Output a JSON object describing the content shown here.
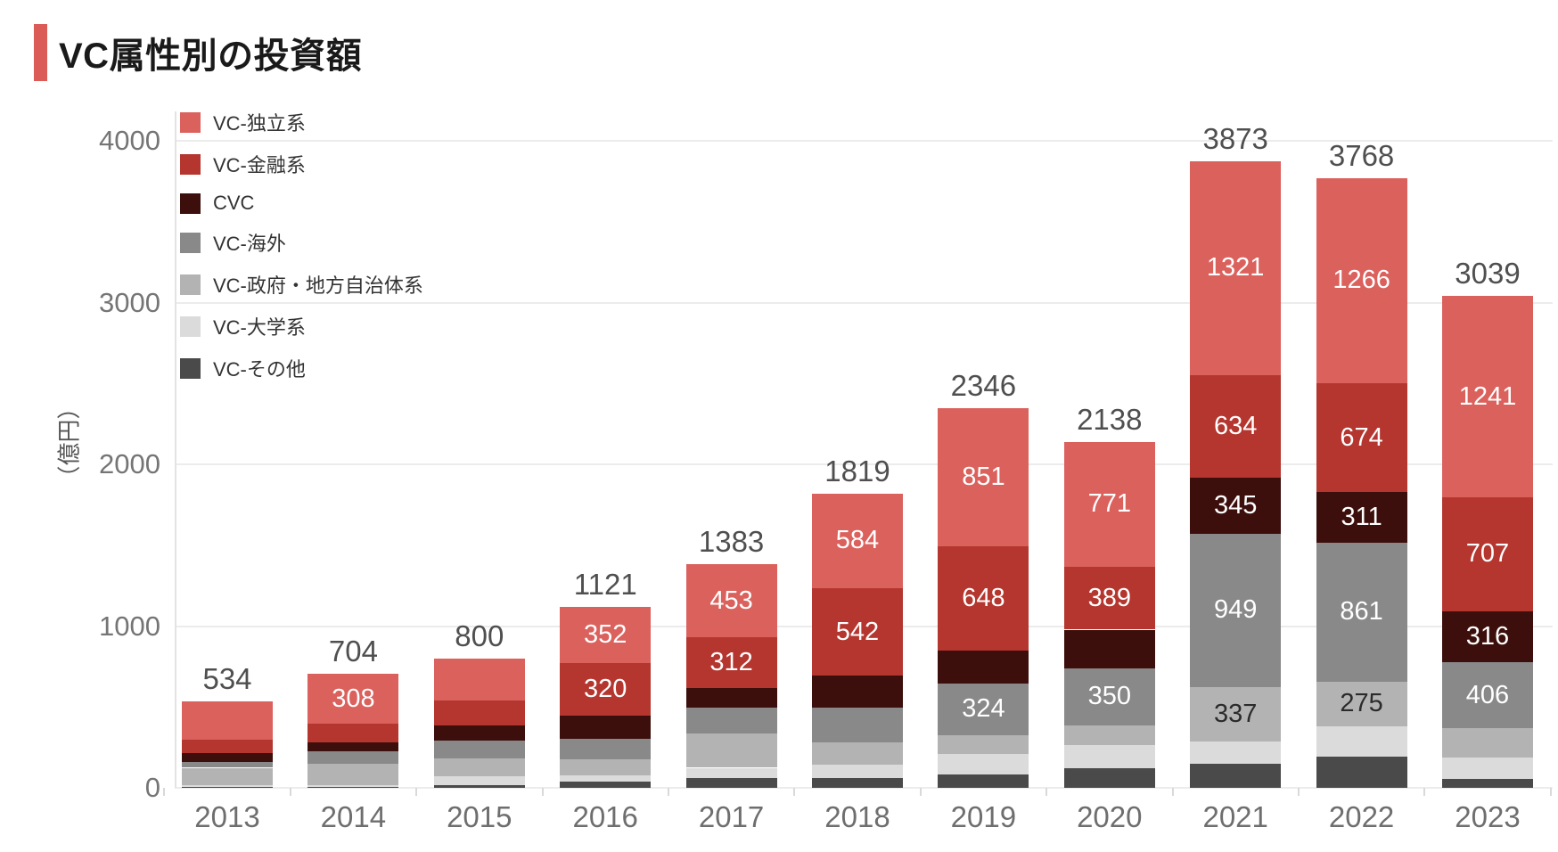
{
  "page": {
    "title": "VC属性別の投資額"
  },
  "colors": {
    "accent": "#DB5B57",
    "grid": "#ECECEC",
    "axis_text": "#757575",
    "year_text": "#6E6E6E",
    "total_text": "#4F4F4F",
    "legend_text": "#333333"
  },
  "chart_data": {
    "type": "bar",
    "stacked": true,
    "title": "VC属性別の投資額",
    "ylabel": "（億円）",
    "yticks": [
      0,
      1000,
      2000,
      3000,
      4000
    ],
    "ylim": [
      0,
      4200
    ],
    "grid": true,
    "legend_position": "upper-left",
    "categories": [
      "2013",
      "2014",
      "2015",
      "2016",
      "2017",
      "2018",
      "2019",
      "2020",
      "2021",
      "2022",
      "2023"
    ],
    "totals": [
      534,
      704,
      800,
      1121,
      1383,
      1819,
      2346,
      2138,
      3873,
      3768,
      3039
    ],
    "series": [
      {
        "name": "VC-独立系",
        "color": "#DB615D",
        "text_color": "#FFFFFF",
        "values": [
          235,
          308,
          260,
          352,
          453,
          584,
          851,
          771,
          1321,
          1266,
          1241
        ],
        "labels": [
          null,
          "308",
          null,
          "352",
          "453",
          "584",
          "851",
          "771",
          "1321",
          "1266",
          "1241"
        ]
      },
      {
        "name": "VC-金融系",
        "color": "#B4362F",
        "text_color": "#FFFFFF",
        "values": [
          82,
          115,
          155,
          320,
          312,
          542,
          648,
          389,
          634,
          674,
          707
        ],
        "labels": [
          null,
          null,
          null,
          "320",
          "312",
          "542",
          "648",
          "389",
          "634",
          "674",
          "707"
        ]
      },
      {
        "name": "CVC",
        "color": "#3C0F0C",
        "text_color": "#FFFFFF",
        "values": [
          55,
          55,
          95,
          148,
          122,
          196,
          200,
          240,
          345,
          311,
          316
        ],
        "labels": [
          null,
          null,
          null,
          null,
          null,
          null,
          null,
          null,
          "345",
          "311",
          "316"
        ]
      },
      {
        "name": "VC-海外",
        "color": "#898989",
        "text_color": "#FFFFFF",
        "values": [
          38,
          78,
          110,
          126,
          162,
          215,
          324,
          350,
          949,
          861,
          406
        ],
        "labels": [
          null,
          null,
          null,
          null,
          null,
          null,
          "324",
          "350",
          "949",
          "861",
          "406"
        ]
      },
      {
        "name": "VC-政府・地方自治体系",
        "color": "#B3B3B3",
        "text_color": "#2B2B2B",
        "values": [
          107,
          130,
          110,
          98,
          210,
          138,
          112,
          125,
          337,
          275,
          180
        ],
        "labels": [
          null,
          null,
          null,
          null,
          null,
          null,
          null,
          null,
          "337",
          "275",
          null
        ]
      },
      {
        "name": "VC-大学系",
        "color": "#DBDBDB",
        "text_color": "#2B2B2B",
        "values": [
          9,
          10,
          55,
          38,
          66,
          83,
          128,
          140,
          140,
          188,
          135
        ],
        "labels": [
          null,
          null,
          null,
          null,
          null,
          null,
          null,
          null,
          null,
          null,
          null
        ]
      },
      {
        "name": "VC-その他",
        "color": "#4A4A4A",
        "text_color": "#FFFFFF",
        "values": [
          8,
          8,
          15,
          39,
          58,
          61,
          83,
          123,
          147,
          193,
          54
        ],
        "labels": [
          null,
          null,
          null,
          null,
          null,
          null,
          null,
          null,
          null,
          null,
          null
        ]
      }
    ]
  }
}
